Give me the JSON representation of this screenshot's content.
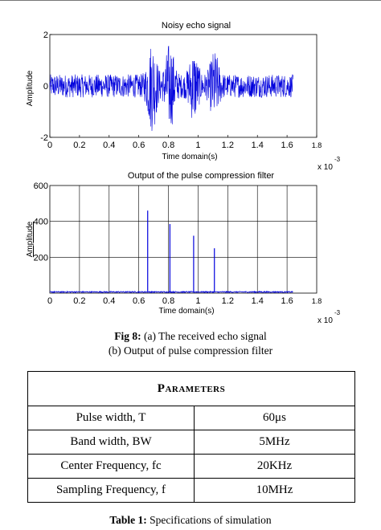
{
  "figure": {
    "chart_data": [
      {
        "type": "line",
        "title": "Noisy echo signal",
        "xlabel": "Time domain(s)",
        "ylabel": "Amplitude",
        "x_exponent_label": "x 10",
        "x_exponent": "-3",
        "xlim": [
          0,
          1.8
        ],
        "ylim": [
          -2,
          2
        ],
        "xticks": [
          "0",
          "0.2",
          "0.4",
          "0.6",
          "0.8",
          "1",
          "1.2",
          "1.4",
          "1.6",
          "1.8"
        ],
        "yticks": [
          "-2",
          "0",
          "2"
        ],
        "signal_range": [
          0,
          1.64
        ],
        "noise_amplitude": 0.45,
        "echo_bursts": [
          {
            "center": 0.69,
            "width": 0.06,
            "amplitude": 1.4
          },
          {
            "center": 0.81,
            "width": 0.06,
            "amplitude": 1.3
          },
          {
            "center": 0.97,
            "width": 0.06,
            "amplitude": 1.0
          },
          {
            "center": 1.11,
            "width": 0.06,
            "amplitude": 0.95
          }
        ],
        "grid": false,
        "line_color": "#0000dd"
      },
      {
        "type": "line",
        "title": "Output of the pulse compression filter",
        "xlabel": "Time domain(s)",
        "ylabel": "Amplitude",
        "x_exponent_label": "x 10",
        "x_exponent": "-3",
        "xlim": [
          0,
          1.8
        ],
        "ylim": [
          0,
          600
        ],
        "xticks": [
          "0",
          "0.2",
          "0.4",
          "0.6",
          "0.8",
          "1",
          "1.2",
          "1.4",
          "1.6",
          "1.8"
        ],
        "yticks": [
          "200",
          "400",
          "600"
        ],
        "signal_range": [
          0,
          1.64
        ],
        "noise_floor": 8,
        "peaks": [
          {
            "x": 0.66,
            "y": 460
          },
          {
            "x": 0.81,
            "y": 385
          },
          {
            "x": 0.97,
            "y": 320
          },
          {
            "x": 1.11,
            "y": 250
          }
        ],
        "grid": true,
        "line_color": "#0000dd"
      }
    ],
    "caption_label": "Fig 8:",
    "caption_line1": " (a) The received echo signal",
    "caption_line2": "(b) Output of pulse compression filter"
  },
  "table": {
    "header": "Parameters",
    "rows": [
      {
        "param": "Pulse width,  T",
        "value": "60μs"
      },
      {
        "param": "Band width, BW",
        "value": "5MHz"
      },
      {
        "param": "Center Frequency,  fc",
        "value": "20KHz"
      },
      {
        "param": "Sampling Frequency,  f",
        "value": "10MHz"
      }
    ],
    "caption_label": "Table 1:",
    "caption_text": " Specifications of simulation"
  }
}
